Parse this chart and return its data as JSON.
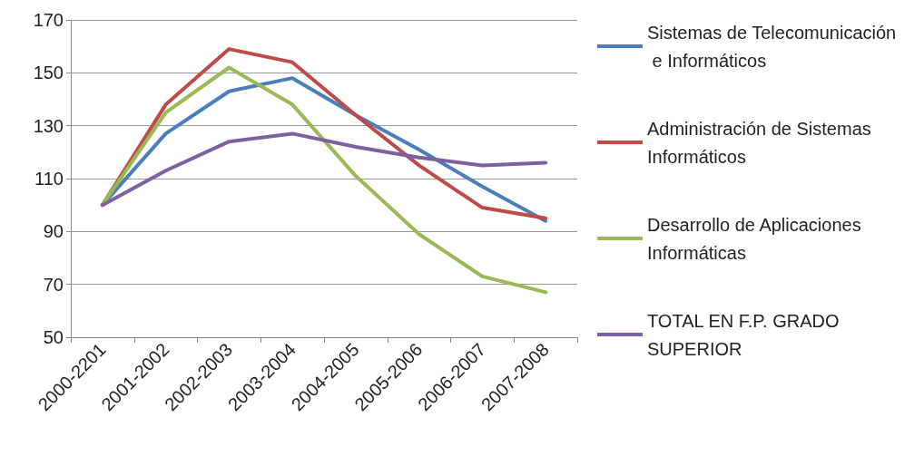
{
  "chart_data": {
    "type": "line",
    "categories": [
      "2000-2201",
      "2001-2002",
      "2002-2003",
      "2003-2004",
      "2004-2005",
      "2005-2006",
      "2006-2007",
      "2007-2008"
    ],
    "series": [
      {
        "name": "Sistemas de Telecomunicación e Informáticos",
        "color": "#4a7ebb",
        "values": [
          100,
          127,
          143,
          148,
          134,
          121,
          107,
          94
        ]
      },
      {
        "name": "Administración de Sistemas Informáticos",
        "color": "#be4b48",
        "values": [
          100,
          138,
          159,
          154,
          134,
          115,
          99,
          95
        ]
      },
      {
        "name": "Desarrollo de Aplicaciones Informáticas",
        "color": "#98b954",
        "values": [
          100,
          135,
          152,
          138,
          111,
          89,
          73,
          67
        ]
      },
      {
        "name": "TOTAL EN F.P. GRADO SUPERIOR",
        "color": "#7d60a0",
        "values": [
          100,
          113,
          124,
          127,
          122,
          118,
          115,
          116
        ]
      }
    ],
    "ylim": [
      50,
      170
    ],
    "yticks": [
      50,
      70,
      90,
      110,
      130,
      150,
      170
    ],
    "grid": "y",
    "legend": "right",
    "marker": "none",
    "line_style": "solid"
  }
}
